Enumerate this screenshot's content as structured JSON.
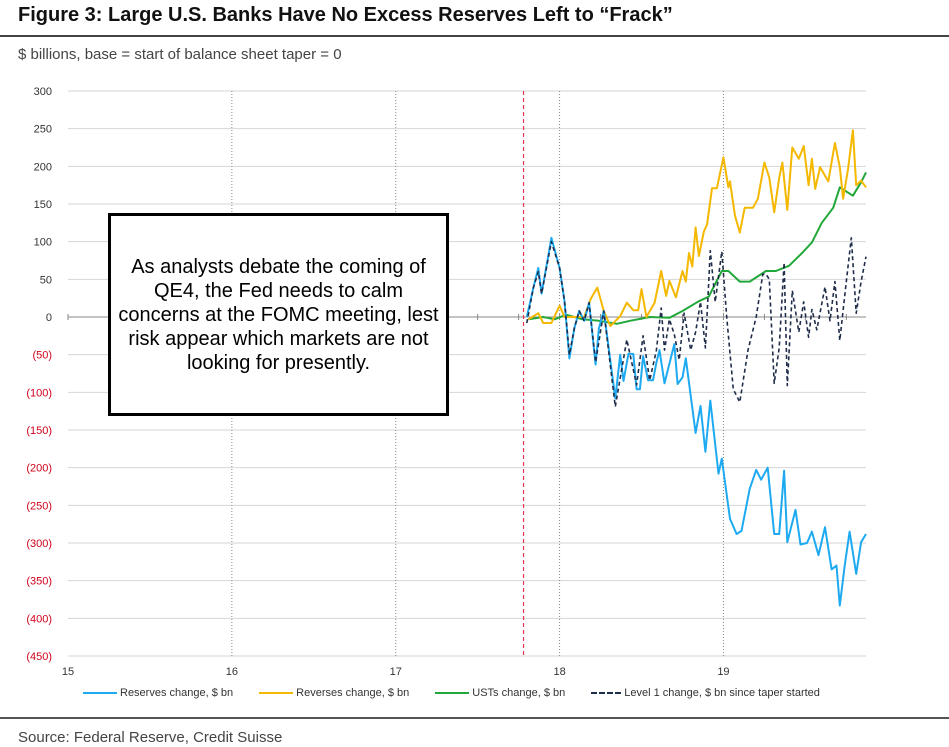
{
  "header": {
    "title": "Figure 3: Large U.S. Banks Have No Excess Reserves Left to “Frack”",
    "subtitle": "$ billions, base = start of balance sheet taper = 0"
  },
  "annotation": "As analysts debate the coming of QE4, the Fed needs to calm concerns at the FOMC meeting, lest risk appear which markets are not looking for presently.",
  "source": "Source: Federal Reserve, Credit Suisse",
  "chart_data": {
    "type": "line",
    "title": "Figure 3: Large U.S. Banks Have No Excess Reserves Left to “Frack”",
    "ylabel": "$ billions, base = start of balance sheet taper = 0",
    "xlim": [
      15,
      19.87
    ],
    "ylim": [
      -450,
      300
    ],
    "x_ticks": [
      15,
      16,
      17,
      18,
      19
    ],
    "x_tick_labels": [
      "15",
      "16",
      "17",
      "18",
      "19"
    ],
    "y_ticks": [
      300,
      250,
      200,
      150,
      100,
      50,
      0,
      -50,
      -100,
      -150,
      -200,
      -250,
      -300,
      -350,
      -400,
      -450
    ],
    "y_tick_labels": [
      "300",
      "250",
      "200",
      "150",
      "100",
      "50",
      "0",
      "(50)",
      "(100)",
      "(150)",
      "(200)",
      "(250)",
      "(300)",
      "(350)",
      "(400)",
      "(450)"
    ],
    "grid": true,
    "taper_start_marker": 17.78,
    "legend_position": "bottom",
    "colors": {
      "positive_label": "#333333",
      "negative_label": "#d0021b",
      "marker": "#e8384f"
    },
    "series": [
      {
        "name": "Reserves change, $ bn",
        "color": "#1eaaf1",
        "style": "solid",
        "x": [
          17.8,
          17.84,
          17.87,
          17.89,
          17.95,
          18.0,
          18.03,
          18.06,
          18.09,
          18.12,
          18.15,
          18.18,
          18.22,
          18.24,
          18.27,
          18.34,
          18.37,
          18.39,
          18.42,
          18.45,
          18.47,
          18.49,
          18.51,
          18.54,
          18.57,
          18.59,
          18.61,
          18.64,
          18.7,
          18.72,
          18.75,
          18.77,
          18.83,
          18.86,
          18.89,
          18.92,
          18.97,
          18.99,
          19.04,
          19.08,
          19.11,
          19.16,
          19.2,
          19.23,
          19.27,
          19.31,
          19.34,
          19.37,
          19.39,
          19.44,
          19.47,
          19.51,
          19.54,
          19.58,
          19.62,
          19.66,
          19.69,
          19.71,
          19.74,
          19.77,
          19.81,
          19.84,
          19.87
        ],
        "y": [
          0,
          39,
          65,
          31,
          105,
          65,
          21,
          -55,
          -15,
          8,
          -5,
          19,
          -63,
          -15,
          8,
          -108,
          -50,
          -85,
          -49,
          -49,
          -96,
          -96,
          -52,
          -84,
          -84,
          -61,
          -44,
          -88,
          -36,
          -89,
          -80,
          -55,
          -154,
          -118,
          -179,
          -111,
          -208,
          -188,
          -268,
          -288,
          -284,
          -228,
          -203,
          -216,
          -200,
          -288,
          -288,
          -204,
          -299,
          -256,
          -302,
          -300,
          -285,
          -316,
          -279,
          -335,
          -330,
          -383,
          -330,
          -285,
          -341,
          -299,
          -288
        ]
      },
      {
        "name": "Reverses change, $ bn",
        "color": "#f5b800",
        "style": "solid",
        "x": [
          17.81,
          17.87,
          17.9,
          17.95,
          18.0,
          18.03,
          18.1,
          18.15,
          18.19,
          18.23,
          18.27,
          18.31,
          18.37,
          18.41,
          18.45,
          18.48,
          18.5,
          18.53,
          18.58,
          18.62,
          18.65,
          18.67,
          18.71,
          18.75,
          18.77,
          18.79,
          18.81,
          18.83,
          18.85,
          18.88,
          18.9,
          18.93,
          18.96,
          19.0,
          19.03,
          19.04,
          19.07,
          19.1,
          19.13,
          19.18,
          19.21,
          19.25,
          19.28,
          19.31,
          19.34,
          19.36,
          19.39,
          19.42,
          19.46,
          19.49,
          19.52,
          19.54,
          19.56,
          19.59,
          19.64,
          19.68,
          19.71,
          19.73,
          19.76,
          19.79,
          19.81,
          19.84,
          19.87
        ],
        "y": [
          -3,
          5,
          -8,
          -8,
          15,
          0,
          0,
          0,
          24,
          39,
          8,
          -12,
          1,
          19,
          9,
          9,
          37,
          0,
          19,
          61,
          28,
          48,
          26,
          61,
          47,
          85,
          67,
          119,
          81,
          113,
          123,
          171,
          171,
          212,
          172,
          180,
          135,
          112,
          145,
          145,
          157,
          205,
          185,
          139,
          185,
          205,
          142,
          225,
          210,
          227,
          175,
          210,
          170,
          199,
          180,
          231,
          199,
          157,
          196,
          248,
          175,
          181,
          172
        ]
      },
      {
        "name": "USTs change, $ bn",
        "color": "#22a83a",
        "style": "solid",
        "x": [
          17.81,
          17.9,
          17.97,
          18.04,
          18.14,
          18.24,
          18.35,
          18.43,
          18.55,
          18.67,
          18.75,
          18.85,
          18.91,
          18.99,
          19.03,
          19.1,
          19.16,
          19.26,
          19.32,
          19.4,
          19.48,
          19.54,
          19.6,
          19.67,
          19.71,
          19.79,
          19.84,
          19.87
        ],
        "y": [
          -3,
          0,
          -3,
          3,
          -3,
          -5,
          -9,
          -5,
          0,
          -1,
          8,
          21,
          27,
          61,
          61,
          47,
          47,
          61,
          61,
          68,
          85,
          99,
          125,
          145,
          172,
          161,
          179,
          192
        ]
      },
      {
        "name": "Level 1 change, $ bn since taper started",
        "color": "#1f2d4a",
        "style": "dashed",
        "x": [
          17.8,
          17.84,
          17.87,
          17.89,
          17.95,
          18.0,
          18.03,
          18.06,
          18.09,
          18.12,
          18.15,
          18.18,
          18.22,
          18.27,
          18.34,
          18.41,
          18.47,
          18.51,
          18.55,
          18.59,
          18.62,
          18.64,
          18.67,
          18.7,
          18.73,
          18.76,
          18.8,
          18.83,
          18.86,
          18.89,
          18.92,
          18.95,
          18.99,
          19.02,
          19.06,
          19.1,
          19.15,
          19.2,
          19.24,
          19.26,
          19.28,
          19.31,
          19.34,
          19.37,
          19.39,
          19.42,
          19.46,
          19.49,
          19.52,
          19.54,
          19.57,
          19.62,
          19.65,
          19.68,
          19.71,
          19.75,
          19.78,
          19.81,
          19.84,
          19.87
        ],
        "y": [
          -8,
          39,
          60,
          31,
          100,
          65,
          21,
          -50,
          -15,
          8,
          -5,
          19,
          -60,
          8,
          -119,
          -30,
          -90,
          -25,
          -84,
          -45,
          12,
          -44,
          -3,
          -23,
          -57,
          5,
          -44,
          -20,
          20,
          -41,
          88,
          20,
          87,
          0,
          -96,
          -113,
          -44,
          0,
          57,
          57,
          50,
          -88,
          -41,
          72,
          -91,
          35,
          -20,
          20,
          -27,
          10,
          -17,
          40,
          -5,
          47,
          -31,
          47,
          105,
          5,
          47,
          80
        ]
      }
    ]
  }
}
